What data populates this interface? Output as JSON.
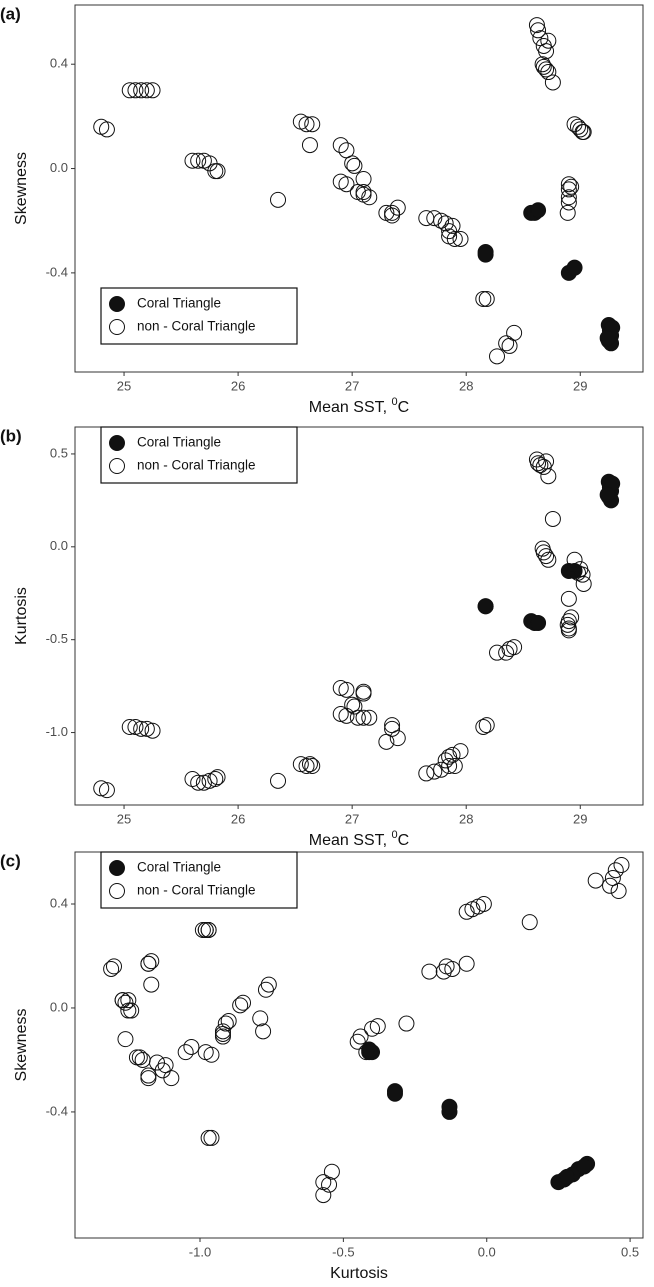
{
  "chart_data": [
    {
      "type": "scatter",
      "panel_label": "(a)",
      "x_label": "Mean SST, ",
      "x_label_sup": "0",
      "x_label_unit": "C",
      "y_label": "Skewness",
      "xlim": [
        24.57,
        29.55
      ],
      "ylim": [
        -0.78,
        0.627
      ],
      "xticks": [
        25,
        26,
        27,
        28,
        29
      ],
      "yticks": [
        0.4,
        {
          "value": 0,
          "label": "0.0"
        },
        -0.4
      ],
      "legend": "lower left",
      "series": [
        {
          "name": "Coral Triangle",
          "color": "#111111",
          "marker": "filled",
          "x": [
            28.17,
            28.17,
            28.57,
            28.6,
            28.63,
            28.9,
            28.95,
            29.25,
            29.26,
            29.27,
            29.25,
            29.27,
            29.28,
            29.24
          ],
          "values": [
            -0.32,
            -0.33,
            -0.17,
            -0.17,
            -0.16,
            -0.4,
            -0.38,
            -0.6,
            -0.62,
            -0.64,
            -0.66,
            -0.67,
            -0.61,
            -0.65
          ]
        },
        {
          "name": "non - Coral Triangle",
          "color": "#111111",
          "marker": "open",
          "x": [
            24.8,
            24.85,
            25.05,
            25.1,
            25.15,
            25.2,
            25.25,
            25.6,
            25.65,
            25.7,
            25.75,
            25.8,
            25.82,
            26.35,
            26.55,
            26.6,
            26.65,
            26.63,
            26.9,
            26.95,
            27.0,
            27.02,
            26.9,
            26.95,
            27.05,
            27.1,
            27.1,
            27.1,
            27.15,
            27.3,
            27.35,
            27.35,
            27.4,
            27.65,
            27.72,
            27.78,
            27.82,
            27.85,
            27.85,
            27.88,
            27.9,
            27.95,
            28.15,
            28.18,
            28.27,
            28.35,
            28.38,
            28.42,
            28.62,
            28.63,
            28.65,
            28.68,
            28.7,
            28.72,
            28.67,
            28.68,
            28.7,
            28.72,
            28.76,
            28.9,
            28.9,
            28.9,
            28.9,
            28.89,
            28.92,
            28.95,
            28.98,
            29.0,
            29.02,
            29.03
          ],
          "values": [
            0.16,
            0.15,
            0.3,
            0.3,
            0.3,
            0.3,
            0.3,
            0.03,
            0.03,
            0.03,
            0.02,
            -0.01,
            -0.01,
            -0.12,
            0.18,
            0.17,
            0.17,
            0.09,
            0.09,
            0.07,
            0.02,
            0.01,
            -0.05,
            -0.06,
            -0.09,
            -0.1,
            -0.04,
            -0.09,
            -0.11,
            -0.17,
            -0.18,
            -0.17,
            -0.15,
            -0.19,
            -0.19,
            -0.2,
            -0.21,
            -0.24,
            -0.26,
            -0.22,
            -0.27,
            -0.27,
            -0.5,
            -0.5,
            -0.72,
            -0.67,
            -0.68,
            -0.63,
            0.55,
            0.53,
            0.5,
            0.47,
            0.45,
            0.49,
            0.4,
            0.39,
            0.38,
            0.37,
            0.33,
            -0.06,
            -0.08,
            -0.11,
            -0.13,
            -0.17,
            -0.07,
            0.17,
            0.16,
            0.15,
            0.14,
            0.14
          ]
        }
      ]
    },
    {
      "type": "scatter",
      "panel_label": "(b)",
      "x_label": "Mean SST, ",
      "x_label_sup": "0",
      "x_label_unit": "C",
      "y_label": "Kurtosis",
      "xlim": [
        24.57,
        29.55
      ],
      "ylim": [
        -1.39,
        0.645
      ],
      "xticks": [
        25,
        26,
        27,
        28,
        29
      ],
      "yticks": [
        0.5,
        {
          "value": 0,
          "label": "0.0"
        },
        -0.5,
        {
          "value": -1,
          "label": "-1.0"
        }
      ],
      "legend": "upper left",
      "series": [
        {
          "name": "Coral Triangle",
          "color": "#111111",
          "marker": "filled",
          "x": [
            28.17,
            28.17,
            28.57,
            28.6,
            28.63,
            28.9,
            28.95,
            29.25,
            29.26,
            29.27,
            29.25,
            29.27,
            29.28,
            29.24
          ],
          "values": [
            -0.32,
            -0.32,
            -0.4,
            -0.41,
            -0.41,
            -0.13,
            -0.13,
            0.35,
            0.32,
            0.3,
            0.27,
            0.25,
            0.34,
            0.28
          ]
        },
        {
          "name": "non - Coral Triangle",
          "color": "#111111",
          "marker": "open",
          "x": [
            24.8,
            24.85,
            25.05,
            25.1,
            25.15,
            25.2,
            25.25,
            25.6,
            25.65,
            25.7,
            25.75,
            25.8,
            25.82,
            26.35,
            26.55,
            26.6,
            26.65,
            26.63,
            26.9,
            26.95,
            27.0,
            27.02,
            26.9,
            26.95,
            27.05,
            27.1,
            27.1,
            27.1,
            27.15,
            27.3,
            27.35,
            27.35,
            27.4,
            27.65,
            27.72,
            27.78,
            27.82,
            27.85,
            27.85,
            27.88,
            27.9,
            27.95,
            28.15,
            28.18,
            28.27,
            28.35,
            28.38,
            28.42,
            28.62,
            28.63,
            28.65,
            28.68,
            28.7,
            28.72,
            28.67,
            28.68,
            28.7,
            28.72,
            28.76,
            28.9,
            28.9,
            28.9,
            28.9,
            28.89,
            28.92,
            28.95,
            28.98,
            29.0,
            29.02,
            29.03
          ],
          "values": [
            -1.3,
            -1.31,
            -0.97,
            -0.97,
            -0.98,
            -0.98,
            -0.99,
            -1.25,
            -1.27,
            -1.27,
            -1.26,
            -1.25,
            -1.24,
            -1.26,
            -1.17,
            -1.18,
            -1.18,
            -1.17,
            -0.76,
            -0.77,
            -0.85,
            -0.86,
            -0.9,
            -0.91,
            -0.92,
            -0.92,
            -0.79,
            -0.78,
            -0.92,
            -1.05,
            -0.96,
            -0.98,
            -1.03,
            -1.22,
            -1.21,
            -1.2,
            -1.15,
            -1.13,
            -1.18,
            -1.12,
            -1.18,
            -1.1,
            -0.97,
            -0.96,
            -0.57,
            -0.57,
            -0.55,
            -0.54,
            0.47,
            0.45,
            0.44,
            0.43,
            0.46,
            0.38,
            -0.01,
            -0.03,
            -0.05,
            -0.07,
            0.15,
            -0.28,
            -0.4,
            -0.44,
            -0.45,
            -0.42,
            -0.38,
            -0.07,
            -0.14,
            -0.12,
            -0.15,
            -0.2
          ]
        }
      ]
    },
    {
      "type": "scatter",
      "panel_label": "(c)",
      "x_label": "Kurtosis",
      "y_label": "Skewness",
      "xlim": [
        -1.436,
        0.545
      ],
      "ylim": [
        -0.885,
        0.6
      ],
      "xticks": [
        {
          "value": -1,
          "label": "-1.0"
        },
        -0.5,
        {
          "value": 0,
          "label": "0.0"
        },
        0.5
      ],
      "yticks": [
        0.4,
        {
          "value": 0,
          "label": "0.0"
        },
        -0.4
      ],
      "legend": "upper left",
      "series": [
        {
          "name": "Coral Triangle",
          "color": "#111111",
          "marker": "filled",
          "x": [
            -0.32,
            -0.32,
            -0.4,
            -0.41,
            -0.41,
            -0.13,
            -0.13,
            0.35,
            0.32,
            0.3,
            0.27,
            0.25,
            0.34,
            0.28
          ],
          "values": [
            -0.32,
            -0.33,
            -0.17,
            -0.17,
            -0.16,
            -0.4,
            -0.38,
            -0.6,
            -0.62,
            -0.64,
            -0.66,
            -0.67,
            -0.61,
            -0.65
          ]
        },
        {
          "name": "non - Coral Triangle",
          "color": "#111111",
          "marker": "open",
          "x": [
            -1.3,
            -1.31,
            -0.97,
            -0.97,
            -0.98,
            -0.98,
            -0.99,
            -1.25,
            -1.27,
            -1.27,
            -1.26,
            -1.25,
            -1.24,
            -1.26,
            -1.17,
            -1.18,
            -1.18,
            -1.17,
            -0.76,
            -0.77,
            -0.85,
            -0.86,
            -0.9,
            -0.91,
            -0.92,
            -0.92,
            -0.79,
            -0.78,
            -0.92,
            -1.05,
            -0.96,
            -0.98,
            -1.03,
            -1.22,
            -1.21,
            -1.2,
            -1.15,
            -1.13,
            -1.18,
            -1.12,
            -1.18,
            -1.1,
            -0.97,
            -0.96,
            -0.57,
            -0.57,
            -0.55,
            -0.54,
            0.47,
            0.45,
            0.44,
            0.43,
            0.46,
            0.38,
            -0.01,
            -0.03,
            -0.05,
            -0.07,
            0.15,
            -0.28,
            -0.4,
            -0.44,
            -0.45,
            -0.42,
            -0.38,
            -0.07,
            -0.14,
            -0.12,
            -0.15,
            -0.2
          ],
          "values": [
            0.16,
            0.15,
            0.3,
            0.3,
            0.3,
            0.3,
            0.3,
            0.03,
            0.03,
            0.03,
            0.02,
            -0.01,
            -0.01,
            -0.12,
            0.18,
            0.17,
            0.17,
            0.09,
            0.09,
            0.07,
            0.02,
            0.01,
            -0.05,
            -0.06,
            -0.09,
            -0.1,
            -0.04,
            -0.09,
            -0.11,
            -0.17,
            -0.18,
            -0.17,
            -0.15,
            -0.19,
            -0.19,
            -0.2,
            -0.21,
            -0.24,
            -0.26,
            -0.22,
            -0.27,
            -0.27,
            -0.5,
            -0.5,
            -0.72,
            -0.67,
            -0.68,
            -0.63,
            0.55,
            0.53,
            0.5,
            0.47,
            0.45,
            0.49,
            0.4,
            0.39,
            0.38,
            0.37,
            0.33,
            -0.06,
            -0.08,
            -0.11,
            -0.13,
            -0.17,
            -0.07,
            0.17,
            0.16,
            0.15,
            0.14,
            0.14
          ]
        }
      ]
    }
  ]
}
